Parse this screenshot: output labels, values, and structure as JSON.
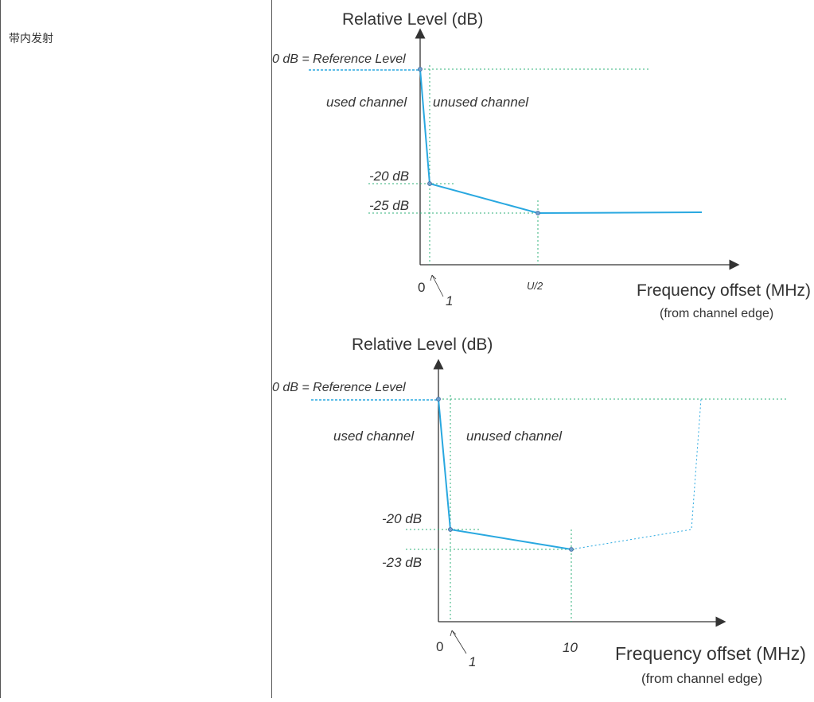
{
  "row": {
    "label": "带内发射"
  },
  "charts": {
    "top": {
      "ylabel": "Relative Level (dB)",
      "reference_label": "0 dB = Reference Level",
      "used_label": "used channel",
      "unused_label": "unused channel",
      "db_labels": [
        "-20 dB",
        "-25 dB"
      ],
      "origin_label": "0",
      "one_label": "1",
      "u2_label": "U/2",
      "xlabel": "Frequency offset (MHz)",
      "xsub": "(from channel edge)"
    },
    "bottom": {
      "ylabel": "Relative Level (dB)",
      "reference_label": "0 dB = Reference Level",
      "used_label": "used channel",
      "unused_label": "unused channel",
      "db_labels": [
        "-20 dB",
        "-23 dB"
      ],
      "origin_label": "0",
      "one_label": "1",
      "ten_label": "10",
      "xlabel": "Frequency offset (MHz)",
      "xsub": "(from channel edge)"
    }
  },
  "chart_data": [
    {
      "type": "line",
      "ylabel": "Relative Level (dB)",
      "xlabel": "Frequency offset (MHz)",
      "series": [
        {
          "x": [
            0,
            1,
            "U/2"
          ],
          "y": [
            0,
            -20,
            -25
          ]
        }
      ],
      "color": "#29a8e0"
    },
    {
      "type": "line",
      "ylabel": "Relative Level (dB)",
      "xlabel": "Frequency offset (MHz)",
      "series": [
        {
          "x": [
            0,
            1,
            10
          ],
          "y": [
            0,
            -20,
            -23
          ]
        }
      ],
      "color": "#29a8e0"
    }
  ]
}
